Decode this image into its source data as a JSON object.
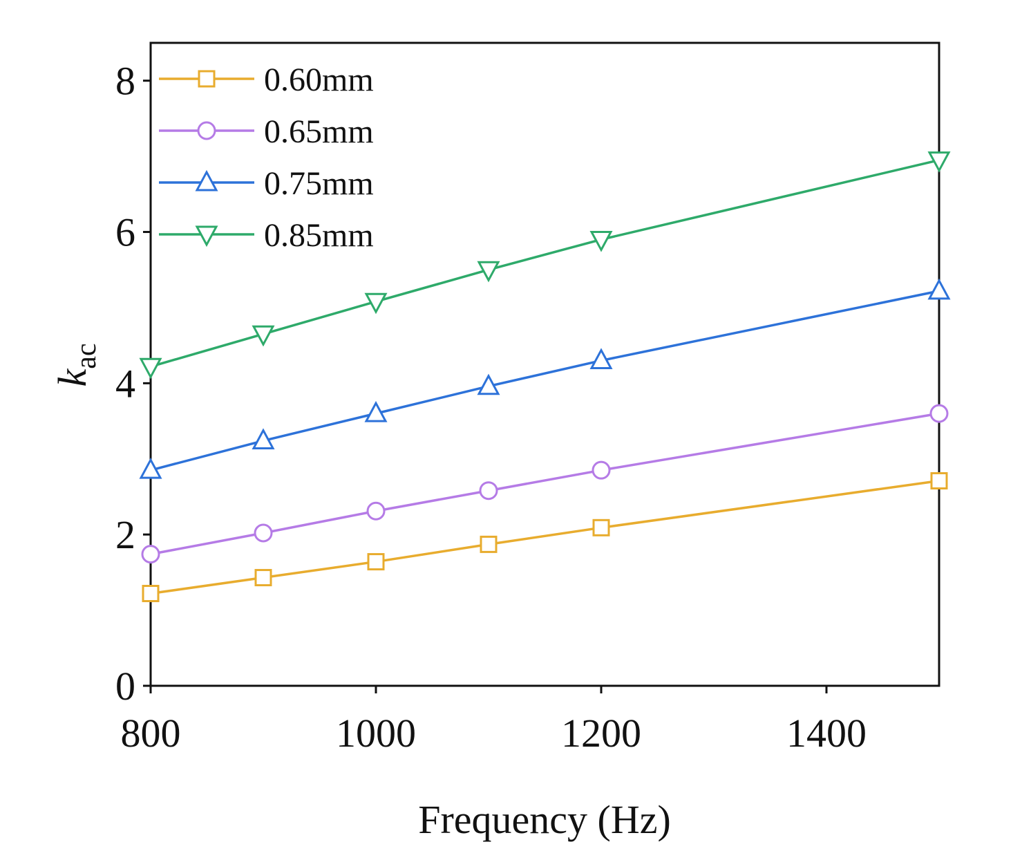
{
  "chart_data": {
    "type": "line",
    "title": "",
    "xlabel": "Frequency (Hz)",
    "ylabel_main": "k",
    "ylabel_sub": "ac",
    "xlim": [
      800,
      1500
    ],
    "ylim": [
      0,
      8.5
    ],
    "xticks": [
      800,
      1000,
      1200,
      1400
    ],
    "xtick_labels": [
      "800",
      "1000",
      "1200",
      "1400"
    ],
    "yticks": [
      0,
      2,
      4,
      6,
      8
    ],
    "ytick_labels": [
      "0",
      "2",
      "4",
      "6",
      "8"
    ],
    "grid": false,
    "legend_position": "top-left",
    "x": [
      800,
      900,
      1000,
      1100,
      1200,
      1500
    ],
    "series": [
      {
        "name": "0.60mm",
        "marker": "square",
        "color": "#E8AC2E",
        "values": [
          1.22,
          1.43,
          1.64,
          1.87,
          2.09,
          2.71
        ]
      },
      {
        "name": "0.65mm",
        "marker": "circle",
        "color": "#B57BE6",
        "values": [
          1.74,
          2.02,
          2.31,
          2.58,
          2.85,
          3.6
        ]
      },
      {
        "name": "0.75mm",
        "marker": "triangle-up",
        "color": "#2D72D9",
        "values": [
          2.85,
          3.24,
          3.6,
          3.96,
          4.3,
          5.22
        ]
      },
      {
        "name": "0.85mm",
        "marker": "triangle-down",
        "color": "#2EAA6A",
        "values": [
          4.22,
          4.65,
          5.08,
          5.5,
          5.9,
          6.95
        ]
      }
    ]
  }
}
